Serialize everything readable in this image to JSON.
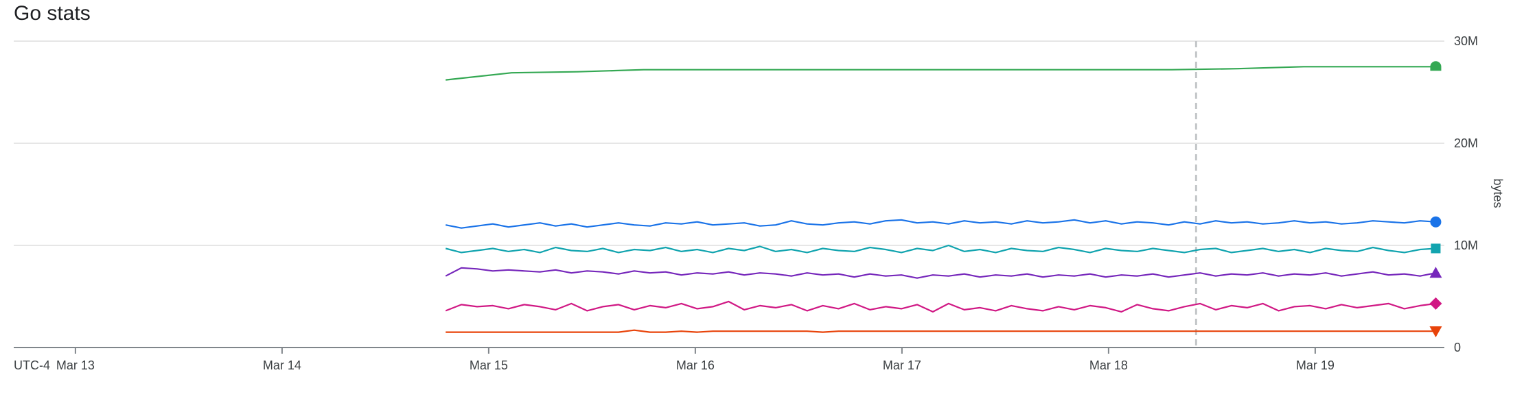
{
  "chart_data": {
    "type": "line",
    "title": "Go stats",
    "xlabel": "",
    "ylabel": "bytes",
    "timezone_label": "UTC-4",
    "x_ticks": [
      "Mar 13",
      "Mar 14",
      "Mar 15",
      "Mar 16",
      "Mar 17",
      "Mar 18",
      "Mar 19"
    ],
    "y_ticks": [
      {
        "value": 0,
        "label": "0"
      },
      {
        "value": 10000000,
        "label": "10M"
      },
      {
        "value": 20000000,
        "label": "20M"
      },
      {
        "value": 30000000,
        "label": "30M"
      }
    ],
    "xlim": [
      "2024-03-12 16:50",
      "2024-03-19 15:00"
    ],
    "ylim": [
      0,
      30000000
    ],
    "grid": true,
    "legend": "none",
    "cursor_date": "2024-03-18 10:10",
    "series": [
      {
        "color": "#34a853",
        "marker": "half-circle",
        "start": "2024-03-14 19:00",
        "end": "2024-03-19 14:00",
        "values": [
          26200000,
          26900000,
          27000000,
          27200000,
          27200000,
          27200000,
          27200000,
          27200000,
          27200000,
          27200000,
          27200000,
          27200000,
          27300000,
          27500000,
          27500000,
          27500000
        ]
      },
      {
        "color": "#1a73e8",
        "marker": "circle",
        "start": "2024-03-14 19:00",
        "end": "2024-03-19 14:00",
        "values": [
          12000000,
          11700000,
          11900000,
          12100000,
          11800000,
          12000000,
          12200000,
          11900000,
          12100000,
          11800000,
          12000000,
          12200000,
          12000000,
          11900000,
          12200000,
          12100000,
          12300000,
          12000000,
          12100000,
          12200000,
          11900000,
          12000000,
          12400000,
          12100000,
          12000000,
          12200000,
          12300000,
          12100000,
          12400000,
          12500000,
          12200000,
          12300000,
          12100000,
          12400000,
          12200000,
          12300000,
          12100000,
          12400000,
          12200000,
          12300000,
          12500000,
          12200000,
          12400000,
          12100000,
          12300000,
          12200000,
          12000000,
          12300000,
          12100000,
          12400000,
          12200000,
          12300000,
          12100000,
          12200000,
          12400000,
          12200000,
          12300000,
          12100000,
          12200000,
          12400000,
          12300000,
          12200000,
          12400000,
          12300000
        ]
      },
      {
        "color": "#12a4af",
        "marker": "square",
        "start": "2024-03-14 19:00",
        "end": "2024-03-19 14:00",
        "values": [
          9700000,
          9300000,
          9500000,
          9700000,
          9400000,
          9600000,
          9300000,
          9800000,
          9500000,
          9400000,
          9700000,
          9300000,
          9600000,
          9500000,
          9800000,
          9400000,
          9600000,
          9300000,
          9700000,
          9500000,
          9900000,
          9400000,
          9600000,
          9300000,
          9700000,
          9500000,
          9400000,
          9800000,
          9600000,
          9300000,
          9700000,
          9500000,
          10000000,
          9400000,
          9600000,
          9300000,
          9700000,
          9500000,
          9400000,
          9800000,
          9600000,
          9300000,
          9700000,
          9500000,
          9400000,
          9700000,
          9500000,
          9300000,
          9600000,
          9700000,
          9300000,
          9500000,
          9700000,
          9400000,
          9600000,
          9300000,
          9700000,
          9500000,
          9400000,
          9800000,
          9500000,
          9300000,
          9600000,
          9700000
        ]
      },
      {
        "color": "#7627bb",
        "marker": "triangle-up",
        "start": "2024-03-14 19:00",
        "end": "2024-03-19 14:00",
        "values": [
          7000000,
          7800000,
          7700000,
          7500000,
          7600000,
          7500000,
          7400000,
          7600000,
          7300000,
          7500000,
          7400000,
          7200000,
          7500000,
          7300000,
          7400000,
          7100000,
          7300000,
          7200000,
          7400000,
          7100000,
          7300000,
          7200000,
          7000000,
          7300000,
          7100000,
          7200000,
          6900000,
          7200000,
          7000000,
          7100000,
          6800000,
          7100000,
          7000000,
          7200000,
          6900000,
          7100000,
          7000000,
          7200000,
          6900000,
          7100000,
          7000000,
          7200000,
          6900000,
          7100000,
          7000000,
          7200000,
          6900000,
          7100000,
          7300000,
          7000000,
          7200000,
          7100000,
          7300000,
          7000000,
          7200000,
          7100000,
          7300000,
          7000000,
          7200000,
          7400000,
          7100000,
          7200000,
          7000000,
          7300000
        ]
      },
      {
        "color": "#d01884",
        "marker": "diamond",
        "start": "2024-03-14 19:00",
        "end": "2024-03-19 14:00",
        "values": [
          3600000,
          4200000,
          4000000,
          4100000,
          3800000,
          4200000,
          4000000,
          3700000,
          4300000,
          3600000,
          4000000,
          4200000,
          3700000,
          4100000,
          3900000,
          4300000,
          3800000,
          4000000,
          4500000,
          3700000,
          4100000,
          3900000,
          4200000,
          3600000,
          4100000,
          3800000,
          4300000,
          3700000,
          4000000,
          3800000,
          4200000,
          3500000,
          4300000,
          3700000,
          3900000,
          3600000,
          4100000,
          3800000,
          3600000,
          4000000,
          3700000,
          4100000,
          3900000,
          3500000,
          4200000,
          3800000,
          3600000,
          4000000,
          4300000,
          3700000,
          4100000,
          3900000,
          4300000,
          3600000,
          4000000,
          4100000,
          3800000,
          4200000,
          3900000,
          4100000,
          4300000,
          3800000,
          4100000,
          4300000
        ]
      },
      {
        "color": "#e8430a",
        "marker": "triangle-down",
        "start": "2024-03-14 19:00",
        "end": "2024-03-19 14:00",
        "values": [
          1500000,
          1500000,
          1500000,
          1500000,
          1500000,
          1500000,
          1500000,
          1500000,
          1500000,
          1500000,
          1500000,
          1500000,
          1700000,
          1500000,
          1500000,
          1600000,
          1500000,
          1600000,
          1600000,
          1600000,
          1600000,
          1600000,
          1600000,
          1600000,
          1500000,
          1600000,
          1600000,
          1600000,
          1600000,
          1600000,
          1600000,
          1600000,
          1600000,
          1600000,
          1600000,
          1600000,
          1600000,
          1600000,
          1600000,
          1600000,
          1600000,
          1600000,
          1600000,
          1600000,
          1600000,
          1600000,
          1600000,
          1600000,
          1600000,
          1600000,
          1600000,
          1600000,
          1600000,
          1600000,
          1600000,
          1600000,
          1600000,
          1600000,
          1600000,
          1600000,
          1600000,
          1600000,
          1600000,
          1600000
        ]
      }
    ]
  }
}
